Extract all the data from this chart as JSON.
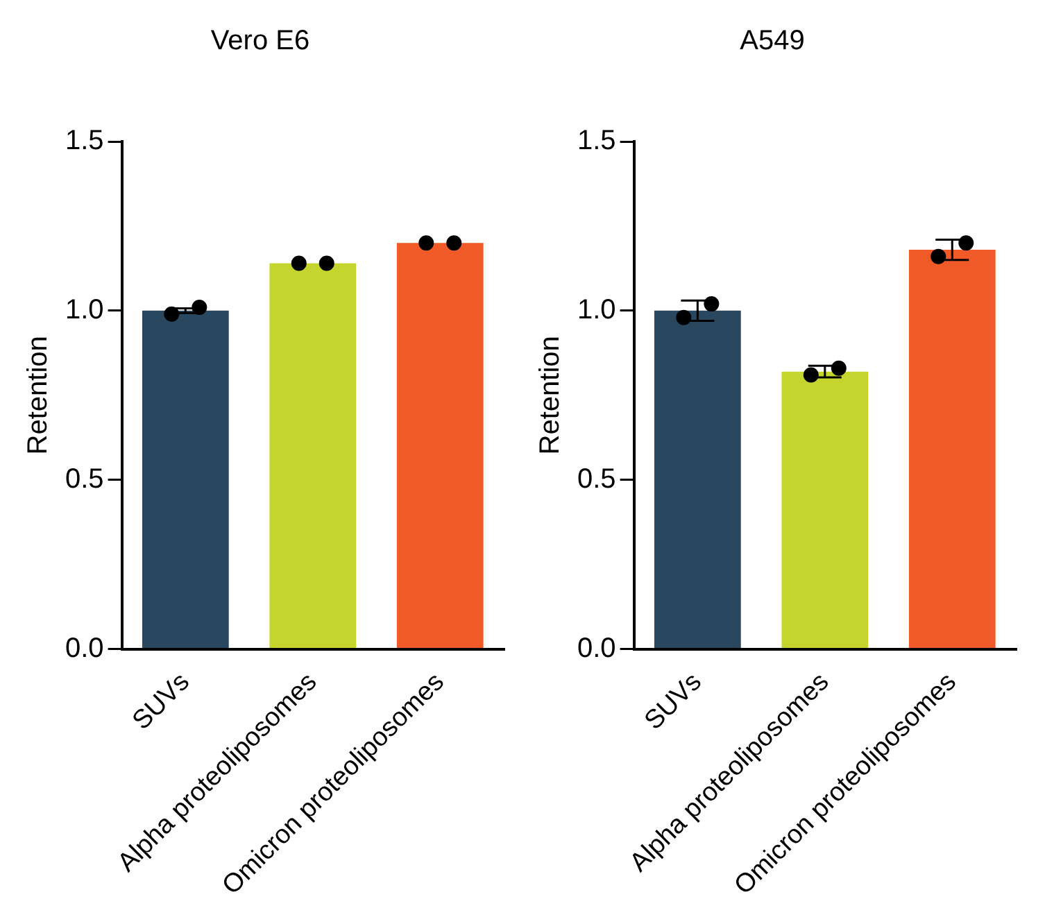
{
  "chart_data": [
    {
      "type": "bar",
      "title": "Vero E6",
      "ylabel": "Retention",
      "categories": [
        "SUVs",
        "Alpha proteoliposomes",
        "Omicron proteoliposomes"
      ],
      "ylim": [
        0,
        1.5
      ],
      "yticks": [
        {
          "value": 0,
          "label": "0.0"
        },
        {
          "value": 0.5,
          "label": "0.5"
        },
        {
          "value": 1,
          "label": "1.0"
        },
        {
          "value": 1.5,
          "label": "1.5"
        }
      ],
      "grid": false,
      "legend": false,
      "series": [
        {
          "colors": [
            "#29475e",
            "#c5d52d",
            "#f05a28"
          ],
          "values": [
            1.0,
            1.14,
            1.2
          ],
          "errors": [
            0.007,
            null,
            null
          ]
        },
        {
          "type": "scatter",
          "color": "#000000",
          "marker": "circle",
          "x": [
            "SUVs",
            "SUVs",
            "Alpha proteoliposomes",
            "Alpha proteoliposomes",
            "Omicron proteoliposomes",
            "Omicron proteoliposomes"
          ],
          "values": [
            0.99,
            1.01,
            1.14,
            1.14,
            1.2,
            1.2
          ]
        }
      ]
    },
    {
      "type": "bar",
      "title": "A549",
      "ylabel": "Retention",
      "categories": [
        "SUVs",
        "Alpha proteoliposomes",
        "Omicron proteoliposomes"
      ],
      "ylim": [
        0,
        1.5
      ],
      "yticks": [
        {
          "value": 0,
          "label": "0.0"
        },
        {
          "value": 0.5,
          "label": "0.5"
        },
        {
          "value": 1,
          "label": "1.0"
        },
        {
          "value": 1.5,
          "label": "1.5"
        }
      ],
      "grid": false,
      "legend": false,
      "series": [
        {
          "colors": [
            "#29475e",
            "#c5d52d",
            "#f05a28"
          ],
          "values": [
            1.0,
            0.82,
            1.18
          ],
          "errors": [
            0.03,
            0.017,
            0.03
          ]
        },
        {
          "type": "scatter",
          "color": "#000000",
          "marker": "circle",
          "x": [
            "SUVs",
            "SUVs",
            "Alpha proteoliposomes",
            "Alpha proteoliposomes",
            "Omicron proteoliposomes",
            "Omicron proteoliposomes"
          ],
          "values": [
            0.98,
            1.02,
            0.81,
            0.83,
            1.16,
            1.2
          ]
        }
      ]
    }
  ]
}
